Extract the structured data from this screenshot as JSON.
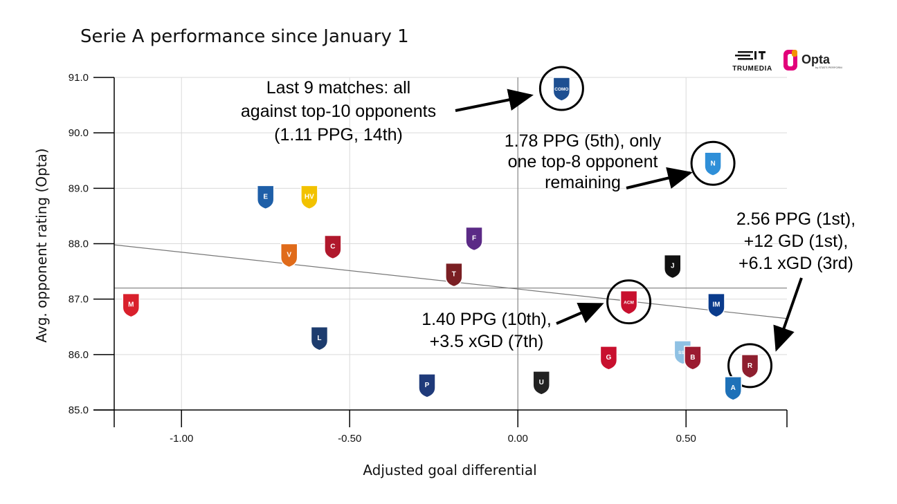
{
  "chart_data": {
    "type": "scatter",
    "title": "Serie A performance since January 1",
    "xlabel": "Adjusted goal differential",
    "ylabel": "Avg. opponent rating (Opta)",
    "xlim": [
      -1.2,
      0.8
    ],
    "ylim": [
      85.0,
      91.0
    ],
    "x_ticks": [
      "-1.00",
      "-0.50",
      "0.00",
      "0.50"
    ],
    "x_tick_values": [
      -1.0,
      -0.5,
      0.0,
      0.5
    ],
    "y_ticks": [
      "85.0",
      "86.0",
      "87.0",
      "88.0",
      "89.0",
      "90.0",
      "91.0"
    ],
    "y_tick_values": [
      85.0,
      86.0,
      87.0,
      88.0,
      89.0,
      90.0,
      91.0
    ],
    "grid": true,
    "reference_lines": {
      "vertical_x": 0.0,
      "horizontal_y": 87.2
    },
    "trend_line": {
      "x": [
        -1.2,
        0.8
      ],
      "y": [
        87.98,
        86.65
      ]
    },
    "points": [
      {
        "team": "Como",
        "x": 0.13,
        "y": 90.8,
        "abbr": "COMO",
        "color": "#1d4f91",
        "circled": true
      },
      {
        "team": "Napoli",
        "x": 0.58,
        "y": 89.45,
        "abbr": "N",
        "color": "#2f8fd8",
        "circled": true
      },
      {
        "team": "Empoli",
        "x": -0.75,
        "y": 88.85,
        "abbr": "E",
        "color": "#1e5fa8",
        "circled": false
      },
      {
        "team": "Verona",
        "x": -0.62,
        "y": 88.85,
        "abbr": "HV",
        "color": "#f2c200",
        "circled": false
      },
      {
        "team": "Fiorentina",
        "x": -0.13,
        "y": 88.1,
        "abbr": "F",
        "color": "#5b2a86",
        "circled": false
      },
      {
        "team": "Venezia",
        "x": -0.68,
        "y": 87.8,
        "abbr": "V",
        "color": "#e06b1a",
        "circled": false
      },
      {
        "team": "Cagliari",
        "x": -0.55,
        "y": 87.95,
        "abbr": "C",
        "color": "#b0182c",
        "circled": false
      },
      {
        "team": "Torino",
        "x": -0.19,
        "y": 87.45,
        "abbr": "T",
        "color": "#7a1f23",
        "circled": false
      },
      {
        "team": "Juventus",
        "x": 0.46,
        "y": 87.6,
        "abbr": "J",
        "color": "#111111",
        "circled": false
      },
      {
        "team": "Monza",
        "x": -1.15,
        "y": 86.9,
        "abbr": "M",
        "color": "#d9202c",
        "circled": false
      },
      {
        "team": "Milan",
        "x": 0.33,
        "y": 86.95,
        "abbr": "ACM",
        "color": "#c8102e",
        "circled": true
      },
      {
        "team": "Inter",
        "x": 0.59,
        "y": 86.9,
        "abbr": "IM",
        "color": "#0a3b8c",
        "circled": false
      },
      {
        "team": "Lecce",
        "x": -0.59,
        "y": 86.3,
        "abbr": "L",
        "color": "#1d3c6e",
        "circled": false
      },
      {
        "team": "Genoa",
        "x": 0.27,
        "y": 85.95,
        "abbr": "G",
        "color": "#c8102e",
        "circled": false
      },
      {
        "team": "Lazio",
        "x": 0.49,
        "y": 86.05,
        "abbr": "SSL",
        "color": "#8fc1e3",
        "circled": false
      },
      {
        "team": "Bologna",
        "x": 0.52,
        "y": 85.95,
        "abbr": "B",
        "color": "#9b1b30",
        "circled": false
      },
      {
        "team": "Roma",
        "x": 0.69,
        "y": 85.8,
        "abbr": "R",
        "color": "#8e1f2f",
        "circled": true
      },
      {
        "team": "Atalanta",
        "x": 0.64,
        "y": 85.4,
        "abbr": "A",
        "color": "#1e71b8",
        "circled": false
      },
      {
        "team": "Parma",
        "x": -0.27,
        "y": 85.45,
        "abbr": "P",
        "color": "#1f3a7a",
        "circled": false
      },
      {
        "team": "Udinese",
        "x": 0.07,
        "y": 85.5,
        "abbr": "U",
        "color": "#222222",
        "circled": false
      }
    ],
    "annotations": [
      {
        "id": "como",
        "lines": [
          "Last 9 matches: all",
          "against top-10 opponents",
          "(1.11 PPG, 14th)"
        ]
      },
      {
        "id": "napoli",
        "lines": [
          "1.78 PPG (5th), only",
          "one top-8 opponent",
          "remaining"
        ]
      },
      {
        "id": "roma",
        "lines": [
          "2.56 PPG (1st),",
          "+12 GD (1st),",
          "+6.1 xGD (3rd)"
        ]
      },
      {
        "id": "milan",
        "lines": [
          "1.40 PPG (10th),",
          "+3.5 xGD (7th)"
        ]
      }
    ]
  },
  "branding": {
    "trumedia": "TRUMEDIA",
    "opta": "Opta",
    "opta_sub": "by STATS PERFORM"
  }
}
